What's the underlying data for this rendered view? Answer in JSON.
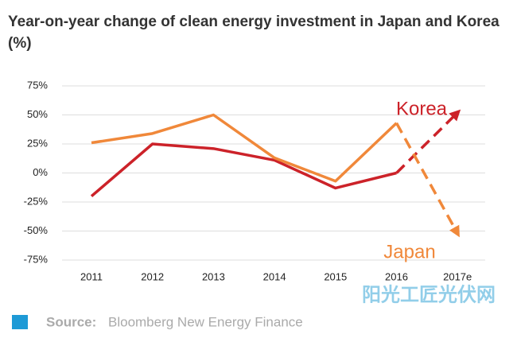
{
  "chart_data": {
    "type": "line",
    "title": "Year-on-year change of clean energy investment in Japan and Korea (%)",
    "categories": [
      "2011",
      "2012",
      "2013",
      "2014",
      "2015",
      "2016",
      "2017e"
    ],
    "series": [
      {
        "name": "Korea",
        "color": "#cc2229",
        "values": [
          -20,
          25,
          21,
          11,
          -13,
          0,
          52
        ]
      },
      {
        "name": "Japan",
        "color": "#f0883a",
        "values": [
          26,
          34,
          50,
          13,
          -7,
          43,
          -52
        ]
      }
    ],
    "dashed_from_index": 5,
    "ylim": [
      -75,
      75
    ],
    "yticks": [
      {
        "value": 75,
        "label": "75%"
      },
      {
        "value": 50,
        "label": "50%"
      },
      {
        "value": 25,
        "label": "25%"
      },
      {
        "value": 0,
        "label": "0%"
      },
      {
        "value": -25,
        "label": "-25%"
      },
      {
        "value": -50,
        "label": "-50%"
      },
      {
        "value": -75,
        "label": "-75%"
      }
    ],
    "grid": true,
    "source_label": "Source:",
    "source_text": "Bloomberg New Energy Finance",
    "watermark": "阳光工匠光伏网"
  }
}
